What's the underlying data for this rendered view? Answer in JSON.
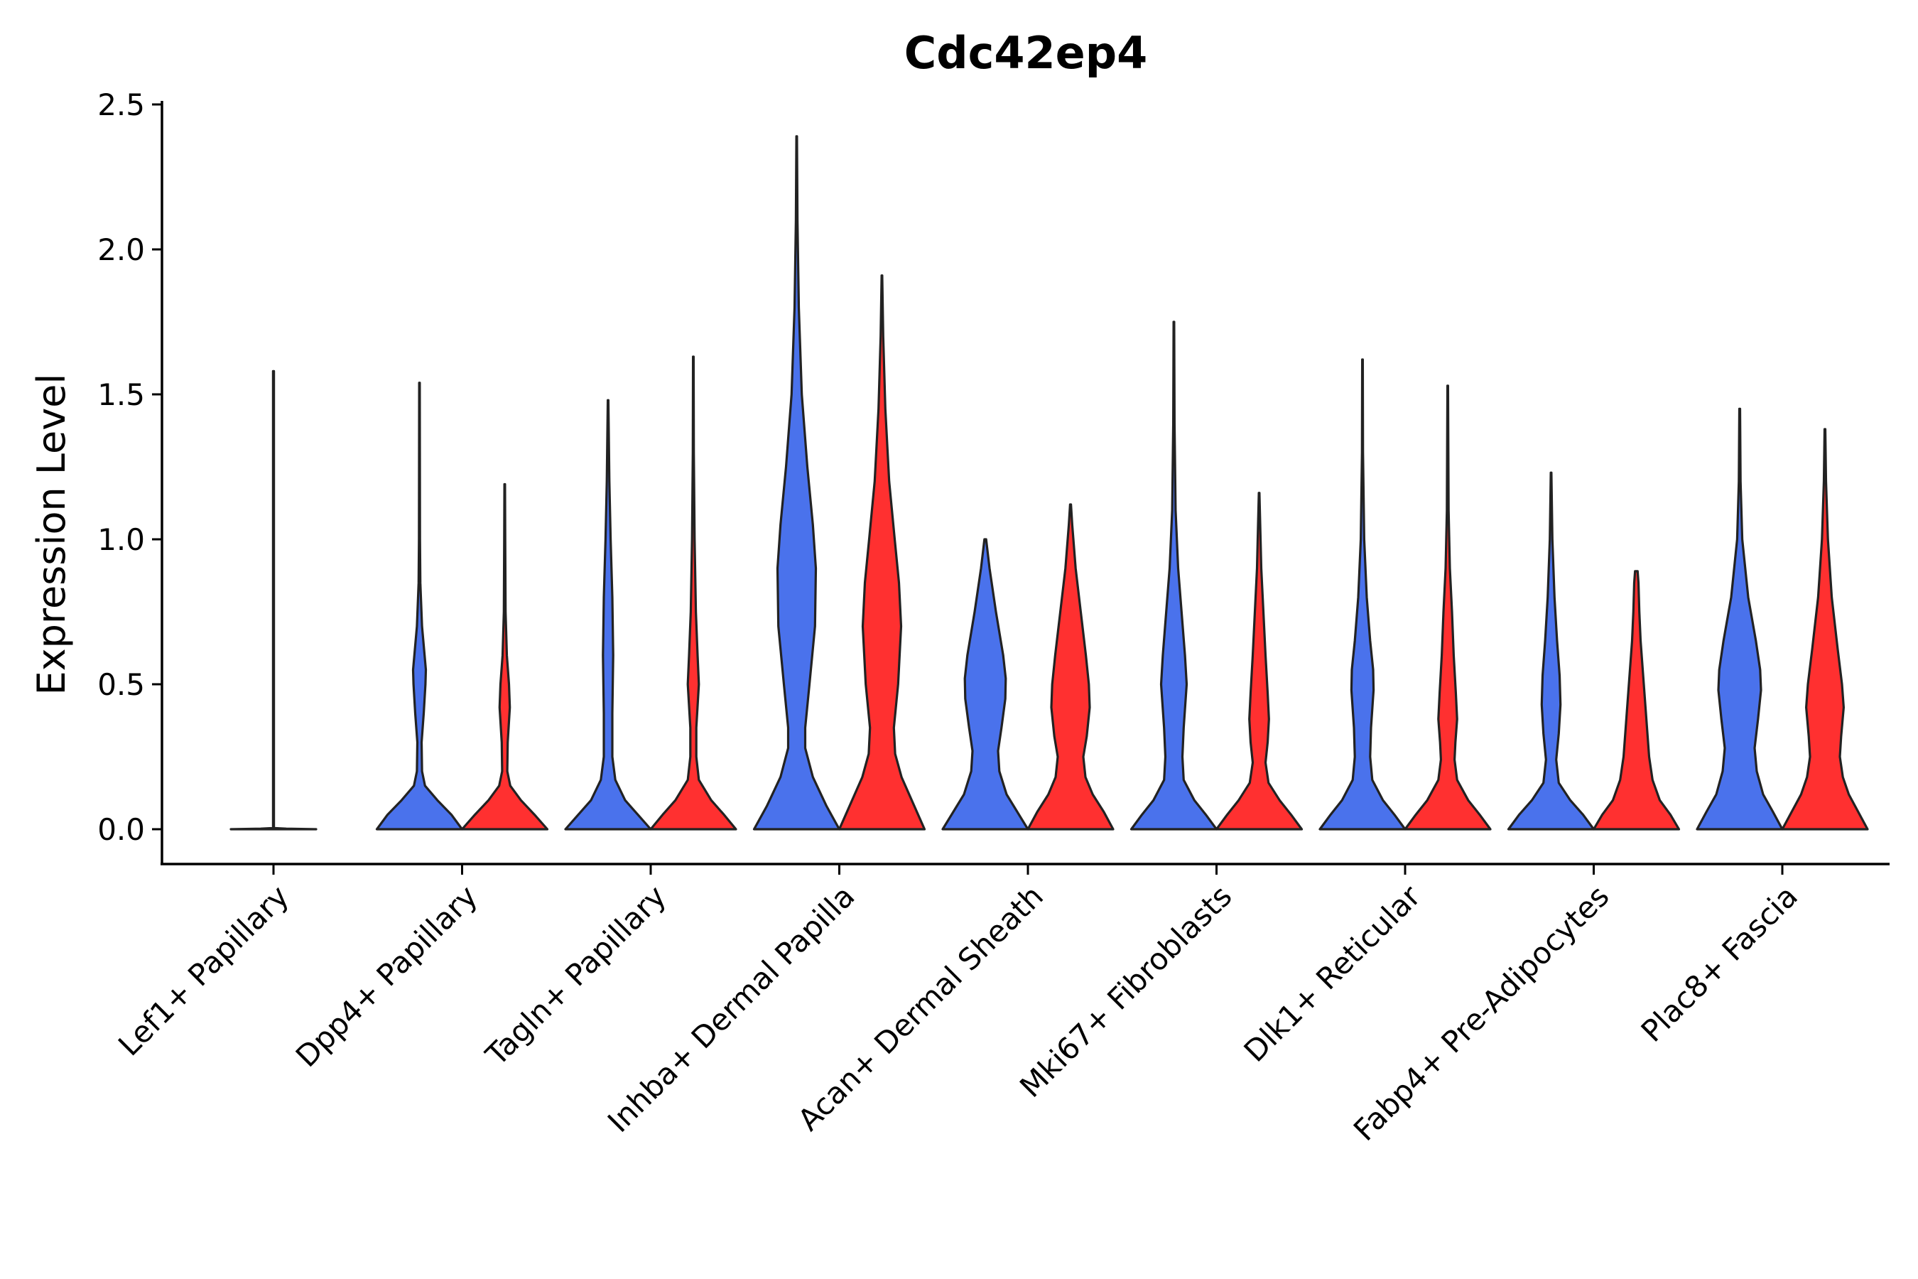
{
  "chart_data": {
    "type": "violin",
    "title": "Cdc42ep4",
    "xlabel": "",
    "ylabel": "Expression Level",
    "ylim": [
      -0.12,
      2.5
    ],
    "yticks": [
      0.0,
      0.5,
      1.0,
      1.5,
      2.0,
      2.5
    ],
    "ytick_labels": [
      "0.0",
      "0.5",
      "1.0",
      "1.5",
      "2.0",
      "2.5"
    ],
    "grid": false,
    "legend": "none",
    "colors": {
      "blue": "#4A72EC",
      "red": "#FF3030",
      "outline": "#222222"
    },
    "categories": [
      "Lef1+ Papillary",
      "Dpp4+ Papillary",
      "Tagln+ Papillary",
      "Inhba+ Dermal Papilla",
      "Acan+ Dermal Sheath",
      "Mki67+ Fibroblasts",
      "Dlk1+ Reticular",
      "Fabp4+ Pre-Adipocytes",
      "Plac8+ Fascia"
    ],
    "violins": [
      {
        "category": "Lef1+ Papillary",
        "group": "single",
        "color": "none",
        "max": 1.58,
        "density": [
          [
            0.0,
            1.0
          ],
          [
            0.002,
            0.3
          ],
          [
            0.004,
            0.0
          ],
          [
            0.005,
            0.01
          ],
          [
            1.58,
            0.01
          ]
        ]
      },
      {
        "category": "Dpp4+ Papillary",
        "group": "blue",
        "max": 1.54,
        "density": [
          [
            0.0,
            1.0
          ],
          [
            0.05,
            0.75
          ],
          [
            0.1,
            0.42
          ],
          [
            0.15,
            0.13
          ],
          [
            0.2,
            0.06
          ],
          [
            0.3,
            0.05
          ],
          [
            0.4,
            0.1
          ],
          [
            0.5,
            0.14
          ],
          [
            0.55,
            0.15
          ],
          [
            0.6,
            0.12
          ],
          [
            0.7,
            0.06
          ],
          [
            0.85,
            0.02
          ],
          [
            1.0,
            0.012
          ],
          [
            1.54,
            0.006
          ]
        ]
      },
      {
        "category": "Dpp4+ Papillary",
        "group": "red",
        "max": 1.19,
        "density": [
          [
            0.0,
            1.0
          ],
          [
            0.05,
            0.7
          ],
          [
            0.1,
            0.38
          ],
          [
            0.15,
            0.13
          ],
          [
            0.2,
            0.06
          ],
          [
            0.3,
            0.07
          ],
          [
            0.42,
            0.12
          ],
          [
            0.5,
            0.1
          ],
          [
            0.6,
            0.05
          ],
          [
            0.75,
            0.02
          ],
          [
            1.0,
            0.012
          ],
          [
            1.19,
            0.006
          ]
        ]
      },
      {
        "category": "Tagln+ Papillary",
        "group": "blue",
        "max": 1.48,
        "density": [
          [
            0.0,
            1.0
          ],
          [
            0.05,
            0.7
          ],
          [
            0.1,
            0.4
          ],
          [
            0.17,
            0.17
          ],
          [
            0.25,
            0.1
          ],
          [
            0.4,
            0.1
          ],
          [
            0.6,
            0.12
          ],
          [
            0.8,
            0.1
          ],
          [
            1.0,
            0.06
          ],
          [
            1.2,
            0.03
          ],
          [
            1.48,
            0.006
          ]
        ]
      },
      {
        "category": "Tagln+ Papillary",
        "group": "red",
        "max": 1.63,
        "density": [
          [
            0.0,
            1.0
          ],
          [
            0.05,
            0.72
          ],
          [
            0.1,
            0.42
          ],
          [
            0.17,
            0.13
          ],
          [
            0.25,
            0.07
          ],
          [
            0.35,
            0.07
          ],
          [
            0.5,
            0.13
          ],
          [
            0.6,
            0.1
          ],
          [
            0.75,
            0.06
          ],
          [
            1.0,
            0.03
          ],
          [
            1.3,
            0.012
          ],
          [
            1.63,
            0.006
          ]
        ]
      },
      {
        "category": "Inhba+ Dermal Papilla",
        "group": "blue",
        "max": 2.39,
        "density": [
          [
            0.0,
            1.0
          ],
          [
            0.08,
            0.7
          ],
          [
            0.18,
            0.38
          ],
          [
            0.28,
            0.2
          ],
          [
            0.35,
            0.2
          ],
          [
            0.5,
            0.3
          ],
          [
            0.7,
            0.43
          ],
          [
            0.9,
            0.45
          ],
          [
            1.05,
            0.38
          ],
          [
            1.25,
            0.25
          ],
          [
            1.5,
            0.12
          ],
          [
            1.8,
            0.05
          ],
          [
            2.1,
            0.018
          ],
          [
            2.39,
            0.006
          ]
        ]
      },
      {
        "category": "Inhba+ Dermal Papilla",
        "group": "red",
        "max": 1.91,
        "density": [
          [
            0.0,
            1.0
          ],
          [
            0.08,
            0.76
          ],
          [
            0.18,
            0.46
          ],
          [
            0.26,
            0.31
          ],
          [
            0.35,
            0.28
          ],
          [
            0.5,
            0.38
          ],
          [
            0.7,
            0.45
          ],
          [
            0.85,
            0.4
          ],
          [
            1.0,
            0.3
          ],
          [
            1.2,
            0.17
          ],
          [
            1.45,
            0.08
          ],
          [
            1.7,
            0.03
          ],
          [
            1.91,
            0.006
          ]
        ]
      },
      {
        "category": "Acan+ Dermal Sheath",
        "group": "blue",
        "max": 1.0,
        "density": [
          [
            0.0,
            1.0
          ],
          [
            0.06,
            0.75
          ],
          [
            0.12,
            0.5
          ],
          [
            0.2,
            0.33
          ],
          [
            0.27,
            0.3
          ],
          [
            0.35,
            0.38
          ],
          [
            0.45,
            0.47
          ],
          [
            0.52,
            0.48
          ],
          [
            0.6,
            0.42
          ],
          [
            0.75,
            0.25
          ],
          [
            0.9,
            0.1
          ],
          [
            1.0,
            0.02
          ]
        ]
      },
      {
        "category": "Acan+ Dermal Sheath",
        "group": "red",
        "max": 1.12,
        "density": [
          [
            0.0,
            1.0
          ],
          [
            0.06,
            0.78
          ],
          [
            0.12,
            0.52
          ],
          [
            0.18,
            0.35
          ],
          [
            0.25,
            0.3
          ],
          [
            0.32,
            0.38
          ],
          [
            0.42,
            0.45
          ],
          [
            0.5,
            0.43
          ],
          [
            0.6,
            0.36
          ],
          [
            0.75,
            0.24
          ],
          [
            0.9,
            0.12
          ],
          [
            1.05,
            0.04
          ],
          [
            1.12,
            0.01
          ]
        ]
      },
      {
        "category": "Mki67+ Fibroblasts",
        "group": "blue",
        "max": 1.75,
        "density": [
          [
            0.0,
            1.0
          ],
          [
            0.05,
            0.75
          ],
          [
            0.1,
            0.48
          ],
          [
            0.17,
            0.23
          ],
          [
            0.25,
            0.2
          ],
          [
            0.35,
            0.23
          ],
          [
            0.5,
            0.3
          ],
          [
            0.6,
            0.26
          ],
          [
            0.75,
            0.18
          ],
          [
            0.9,
            0.1
          ],
          [
            1.1,
            0.04
          ],
          [
            1.4,
            0.015
          ],
          [
            1.75,
            0.006
          ]
        ]
      },
      {
        "category": "Mki67+ Fibroblasts",
        "group": "red",
        "max": 1.16,
        "density": [
          [
            0.0,
            1.0
          ],
          [
            0.05,
            0.75
          ],
          [
            0.1,
            0.48
          ],
          [
            0.16,
            0.22
          ],
          [
            0.23,
            0.15
          ],
          [
            0.3,
            0.2
          ],
          [
            0.38,
            0.23
          ],
          [
            0.47,
            0.2
          ],
          [
            0.6,
            0.15
          ],
          [
            0.75,
            0.1
          ],
          [
            0.9,
            0.05
          ],
          [
            1.16,
            0.006
          ]
        ]
      },
      {
        "category": "Dlk1+ Reticular",
        "group": "blue",
        "max": 1.62,
        "density": [
          [
            0.0,
            1.0
          ],
          [
            0.05,
            0.75
          ],
          [
            0.1,
            0.48
          ],
          [
            0.17,
            0.23
          ],
          [
            0.25,
            0.18
          ],
          [
            0.35,
            0.2
          ],
          [
            0.48,
            0.26
          ],
          [
            0.55,
            0.25
          ],
          [
            0.65,
            0.18
          ],
          [
            0.8,
            0.1
          ],
          [
            1.0,
            0.04
          ],
          [
            1.3,
            0.012
          ],
          [
            1.62,
            0.006
          ]
        ]
      },
      {
        "category": "Dlk1+ Reticular",
        "group": "red",
        "max": 1.53,
        "density": [
          [
            0.0,
            1.0
          ],
          [
            0.05,
            0.75
          ],
          [
            0.1,
            0.48
          ],
          [
            0.17,
            0.22
          ],
          [
            0.24,
            0.16
          ],
          [
            0.3,
            0.18
          ],
          [
            0.38,
            0.22
          ],
          [
            0.47,
            0.19
          ],
          [
            0.6,
            0.14
          ],
          [
            0.75,
            0.1
          ],
          [
            0.9,
            0.05
          ],
          [
            1.1,
            0.02
          ],
          [
            1.53,
            0.006
          ]
        ]
      },
      {
        "category": "Fabp4+ Pre-Adipocytes",
        "group": "blue",
        "max": 1.23,
        "density": [
          [
            0.0,
            1.0
          ],
          [
            0.05,
            0.75
          ],
          [
            0.1,
            0.45
          ],
          [
            0.16,
            0.18
          ],
          [
            0.24,
            0.12
          ],
          [
            0.33,
            0.18
          ],
          [
            0.43,
            0.22
          ],
          [
            0.53,
            0.2
          ],
          [
            0.65,
            0.14
          ],
          [
            0.8,
            0.08
          ],
          [
            1.0,
            0.03
          ],
          [
            1.23,
            0.006
          ]
        ]
      },
      {
        "category": "Fabp4+ Pre-Adipocytes",
        "group": "red",
        "max": 0.89,
        "density": [
          [
            0.0,
            1.0
          ],
          [
            0.05,
            0.8
          ],
          [
            0.1,
            0.55
          ],
          [
            0.17,
            0.38
          ],
          [
            0.25,
            0.3
          ],
          [
            0.35,
            0.25
          ],
          [
            0.45,
            0.2
          ],
          [
            0.55,
            0.15
          ],
          [
            0.65,
            0.1
          ],
          [
            0.75,
            0.07
          ],
          [
            0.85,
            0.05
          ],
          [
            0.89,
            0.03
          ]
        ]
      },
      {
        "category": "Plac8+ Fascia",
        "group": "blue",
        "max": 1.45,
        "density": [
          [
            0.0,
            1.0
          ],
          [
            0.06,
            0.78
          ],
          [
            0.12,
            0.55
          ],
          [
            0.2,
            0.4
          ],
          [
            0.28,
            0.35
          ],
          [
            0.38,
            0.43
          ],
          [
            0.48,
            0.5
          ],
          [
            0.55,
            0.48
          ],
          [
            0.65,
            0.38
          ],
          [
            0.8,
            0.2
          ],
          [
            1.0,
            0.06
          ],
          [
            1.2,
            0.02
          ],
          [
            1.45,
            0.008
          ]
        ]
      },
      {
        "category": "Plac8+ Fascia",
        "group": "red",
        "max": 1.38,
        "density": [
          [
            0.0,
            1.0
          ],
          [
            0.06,
            0.78
          ],
          [
            0.12,
            0.56
          ],
          [
            0.18,
            0.42
          ],
          [
            0.25,
            0.35
          ],
          [
            0.32,
            0.38
          ],
          [
            0.42,
            0.44
          ],
          [
            0.5,
            0.4
          ],
          [
            0.62,
            0.3
          ],
          [
            0.8,
            0.16
          ],
          [
            1.0,
            0.07
          ],
          [
            1.2,
            0.025
          ],
          [
            1.38,
            0.008
          ]
        ]
      }
    ]
  }
}
